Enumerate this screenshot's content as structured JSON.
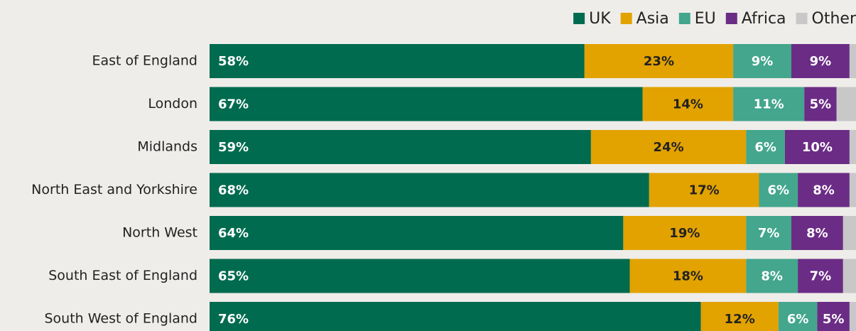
{
  "chart_data": {
    "type": "stacked-bar-horizontal",
    "categories": [
      "East of England",
      "London",
      "Midlands",
      "North East and Yorkshire",
      "North West",
      "South East of England",
      "South West of England"
    ],
    "xlim": [
      0,
      100
    ],
    "legend": "top-right",
    "series": [
      {
        "name": "UK",
        "color": "#006b4f",
        "label_color": "#ffffff",
        "values": [
          58,
          67,
          59,
          68,
          64,
          65,
          76
        ],
        "value_labels": [
          "58%",
          "67%",
          "59%",
          "68%",
          "64%",
          "65%",
          "76%"
        ]
      },
      {
        "name": "Asia",
        "color": "#e2a200",
        "label_color": "#222222",
        "values": [
          23,
          14,
          24,
          17,
          19,
          18,
          12
        ],
        "value_labels": [
          "23%",
          "14%",
          "24%",
          "17%",
          "19%",
          "18%",
          "12%"
        ]
      },
      {
        "name": "EU",
        "color": "#43a68d",
        "label_color": "#ffffff",
        "values": [
          9,
          11,
          6,
          6,
          7,
          8,
          6
        ],
        "value_labels": [
          "9%",
          "11%",
          "6%",
          "6%",
          "7%",
          "8%",
          "6%"
        ]
      },
      {
        "name": "Africa",
        "color": "#6b2c85",
        "label_color": "#ffffff",
        "values": [
          9,
          5,
          10,
          8,
          8,
          7,
          5
        ],
        "value_labels": [
          "9%",
          "5%",
          "10%",
          "8%",
          "8%",
          "7%",
          "5%"
        ]
      },
      {
        "name": "Other",
        "color": "#c8c8c8",
        "values": [
          1,
          3,
          1,
          1,
          2,
          2,
          1
        ]
      }
    ]
  }
}
